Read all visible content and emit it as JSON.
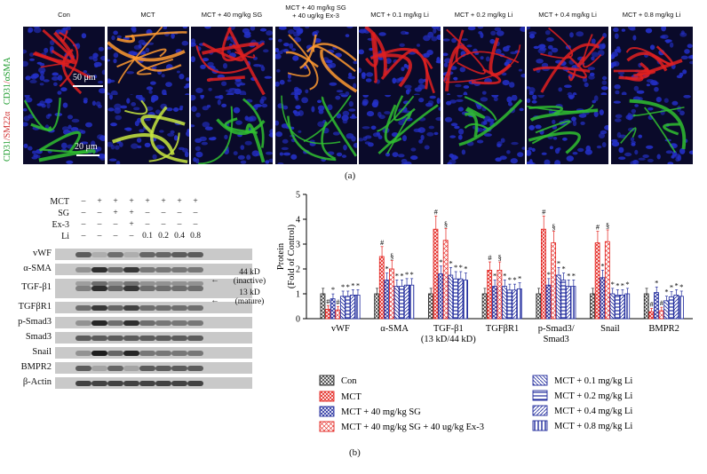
{
  "panel_a": {
    "headers": [
      "Con",
      "MCT",
      "MCT + 40 mg/kg SG",
      "MCT + 40 mg/kg SG\n+ 40 ug/kg Ex-3",
      "MCT + 0.1 mg/kg Li",
      "MCT + 0.2 mg/kg Li",
      "MCT + 0.4 mg/kg Li",
      "MCT + 0.8 mg/kg Li"
    ],
    "row1_label_parts": [
      "CD31",
      "/",
      "αSMA"
    ],
    "row2_label_parts": [
      "CD31",
      "/",
      "SM22α"
    ],
    "scale1": "50 μm",
    "scale2": "20 μm",
    "label": "(a)"
  },
  "panel_b": {
    "label": "(b)",
    "treatment_rows": [
      {
        "name": "MCT",
        "cells": [
          "–",
          "+",
          "+",
          "+",
          "+",
          "+",
          "+",
          "+"
        ]
      },
      {
        "name": "SG",
        "cells": [
          "–",
          "–",
          "+",
          "+",
          "–",
          "–",
          "–",
          "–"
        ]
      },
      {
        "name": "Ex-3",
        "cells": [
          "–",
          "–",
          "–",
          "+",
          "–",
          "–",
          "–",
          "–"
        ]
      },
      {
        "name": "Li",
        "cells": [
          "–",
          "–",
          "–",
          "–",
          "0.1",
          "0.2",
          "0.4",
          "0.8"
        ]
      }
    ],
    "blot_labels": [
      "vWF",
      "α-SMA",
      "TGF-β1",
      "TGFβR1",
      "p-Smad3",
      "Smad3",
      "Snail",
      "BMPR2",
      "β-Actin"
    ],
    "tgf_annotations": {
      "upper": "44 kD\n(inactive)",
      "lower": "13 kD\n(mature)"
    }
  },
  "chart_data": {
    "type": "bar",
    "ylabel": "Protein\n(Fold of Control)",
    "ylim": [
      0,
      5
    ],
    "yticks": [
      0,
      1,
      2,
      3,
      4,
      5
    ],
    "categories": [
      "vWF",
      "α-SMA",
      "TGF-β1\n(13 kD/44 kD)",
      "TGFβR1",
      "p-Smad3/\nSmad3",
      "Snail",
      "BMPR2"
    ],
    "series": [
      {
        "name": "Con",
        "values": [
          1.0,
          1.0,
          1.0,
          1.0,
          1.0,
          1.0,
          1.0
        ]
      },
      {
        "name": "MCT",
        "values": [
          0.38,
          2.5,
          3.6,
          1.95,
          3.6,
          3.05,
          0.28
        ]
      },
      {
        "name": "MCT + 40 mg/kg SG",
        "values": [
          0.8,
          1.55,
          1.8,
          1.3,
          1.35,
          1.65,
          1.05
        ]
      },
      {
        "name": "MCT + 40 mg/kg SG + 40 ug/kg Ex-3",
        "values": [
          0.35,
          2.0,
          3.15,
          1.95,
          3.05,
          3.1,
          0.32
        ]
      },
      {
        "name": "MCT + 0.1 mg/kg Li",
        "values": [
          0.9,
          1.3,
          1.75,
          1.3,
          1.75,
          1.0,
          0.72
        ]
      },
      {
        "name": "MCT + 0.2 mg/kg Li",
        "values": [
          0.9,
          1.3,
          1.6,
          1.15,
          1.55,
          0.95,
          0.88
        ]
      },
      {
        "name": "MCT + 0.4 mg/kg Li",
        "values": [
          0.95,
          1.35,
          1.6,
          1.15,
          1.3,
          0.95,
          0.95
        ]
      },
      {
        "name": "MCT + 0.8 mg/kg Li",
        "values": [
          0.95,
          1.35,
          1.55,
          1.2,
          1.3,
          1.0,
          0.9
        ]
      }
    ],
    "colors": {
      "black": "#222222",
      "red": "#e3201b",
      "blue": "#1f2a9c"
    },
    "annotation_symbols": {
      "hash": "#",
      "star": "*",
      "section": "§"
    }
  }
}
